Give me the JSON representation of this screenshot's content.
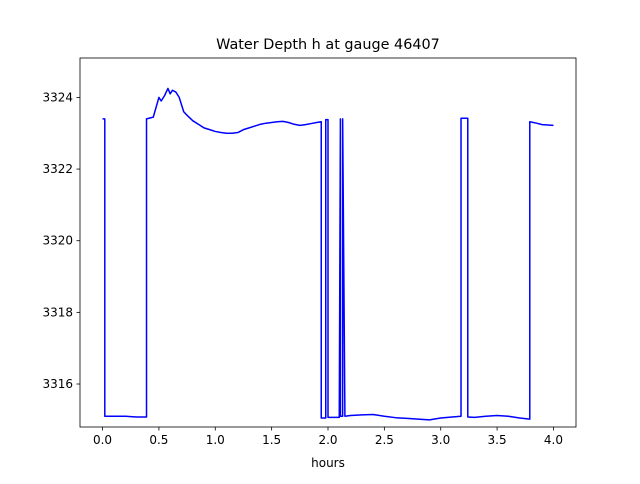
{
  "chart_data": {
    "type": "line",
    "title": "Water Depth h at gauge 46407",
    "xlabel": "hours",
    "ylabel": "",
    "xlim": [
      -0.2,
      4.2
    ],
    "ylim": [
      3314.8,
      3325.1
    ],
    "xticks": [
      0.0,
      0.5,
      1.0,
      1.5,
      2.0,
      2.5,
      3.0,
      3.5,
      4.0
    ],
    "xtick_labels": [
      "0.0",
      "0.5",
      "1.0",
      "1.5",
      "2.0",
      "2.5",
      "3.0",
      "3.5",
      "4.0"
    ],
    "yticks": [
      3316,
      3318,
      3320,
      3322,
      3324
    ],
    "ytick_labels": [
      "3316",
      "3318",
      "3320",
      "3322",
      "3324"
    ],
    "grid": false,
    "legend": false,
    "series": [
      {
        "color": "#0000ff",
        "x": [
          0.0,
          0.02,
          0.02,
          0.1,
          0.2,
          0.3,
          0.39,
          0.39,
          0.45,
          0.5,
          0.52,
          0.55,
          0.58,
          0.6,
          0.62,
          0.65,
          0.68,
          0.72,
          0.75,
          0.8,
          0.85,
          0.9,
          0.95,
          1.0,
          1.05,
          1.1,
          1.15,
          1.2,
          1.25,
          1.3,
          1.35,
          1.4,
          1.45,
          1.5,
          1.55,
          1.6,
          1.65,
          1.7,
          1.75,
          1.8,
          1.85,
          1.9,
          1.94,
          1.94,
          1.98,
          1.98,
          2.0,
          2.0,
          2.1,
          2.11,
          2.11,
          2.13,
          2.13,
          2.15,
          2.2,
          2.3,
          2.4,
          2.5,
          2.6,
          2.7,
          2.8,
          2.9,
          3.0,
          3.1,
          3.18,
          3.18,
          3.24,
          3.24,
          3.3,
          3.4,
          3.5,
          3.6,
          3.7,
          3.79,
          3.79,
          3.85,
          3.9,
          4.0
        ],
        "y": [
          3323.4,
          3323.4,
          3315.1,
          3315.1,
          3315.1,
          3315.08,
          3315.08,
          3323.4,
          3323.45,
          3324.0,
          3323.9,
          3324.05,
          3324.25,
          3324.1,
          3324.2,
          3324.15,
          3324.0,
          3323.6,
          3323.5,
          3323.35,
          3323.25,
          3323.15,
          3323.1,
          3323.05,
          3323.02,
          3323.0,
          3323.0,
          3323.02,
          3323.1,
          3323.15,
          3323.2,
          3323.25,
          3323.28,
          3323.3,
          3323.32,
          3323.33,
          3323.3,
          3323.25,
          3323.22,
          3323.24,
          3323.27,
          3323.3,
          3323.32,
          3315.05,
          3315.05,
          3323.38,
          3323.38,
          3315.07,
          3315.07,
          3323.4,
          3315.1,
          3315.1,
          3323.4,
          3315.1,
          3315.12,
          3315.14,
          3315.15,
          3315.1,
          3315.06,
          3315.04,
          3315.02,
          3315.0,
          3315.05,
          3315.08,
          3315.1,
          3323.42,
          3323.42,
          3315.08,
          3315.07,
          3315.1,
          3315.12,
          3315.1,
          3315.05,
          3315.02,
          3323.32,
          3323.28,
          3323.24,
          3323.22
        ]
      }
    ]
  }
}
